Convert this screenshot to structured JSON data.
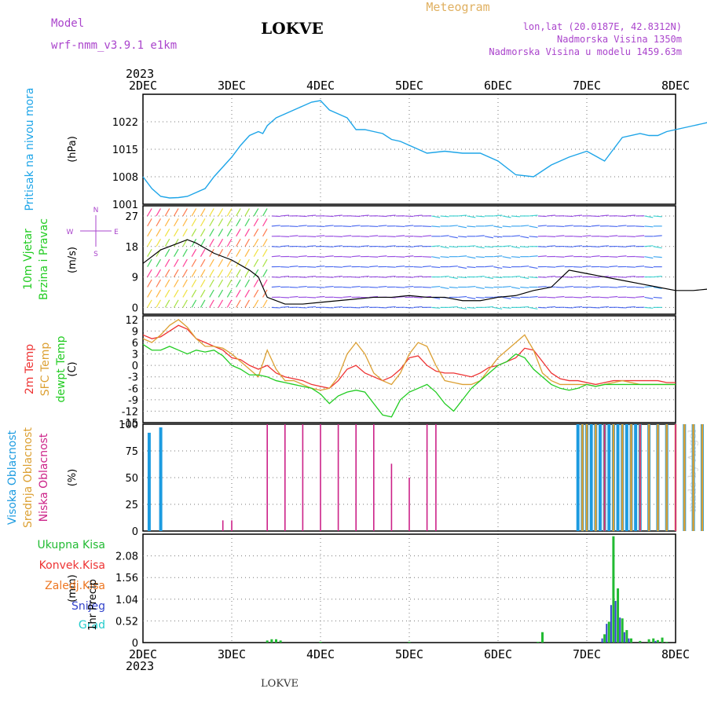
{
  "header": {
    "model_label": "Model",
    "model_name": "wrf-nmm_v3.9.1 e1km",
    "station": "LOKVE",
    "product": "Meteogram",
    "lonlat": "lon,lat (20.0187E, 42.8312N)",
    "altitude": "Nadmorska Visina 1350m",
    "model_altitude": "Nadmorska Visina u modelu 1459.63m",
    "credit": "made by Angel",
    "footer_station": "LOKVE"
  },
  "colors": {
    "pressure": "#1ea5e8",
    "wind_label": "#22cc22",
    "cloud_high": "#1c9be0",
    "cloud_mid": "#dca033",
    "cloud_low": "#cc2288",
    "precip_total": "#22bb33",
    "precip_conv": "#ee3333",
    "precip_frz": "#ee7722",
    "precip_snow": "#3344cc",
    "precip_hail": "#22cccc",
    "temp2m": "#ee3333",
    "tsfc": "#dca033",
    "dewpt": "#22cc22",
    "header_purple": "#aa44cc",
    "header_gold": "#e0b060"
  },
  "time_axis": {
    "year": "2023",
    "ticks": [
      "2DEC",
      "3DEC",
      "4DEC",
      "5DEC",
      "6DEC",
      "7DEC",
      "8DEC"
    ]
  },
  "chart_data": [
    {
      "type": "line",
      "ylabel": "Pritisak na nivou mora",
      "unit": "(hPa)",
      "ylim": [
        1001,
        1029
      ],
      "yticks": [
        "1001",
        "1008",
        "1015",
        "1022"
      ],
      "x": [
        0,
        0.1,
        0.2,
        0.3,
        0.4,
        0.5,
        0.6,
        0.7,
        0.8,
        0.9,
        1.0,
        1.1,
        1.2,
        1.3,
        1.35,
        1.4,
        1.5,
        1.6,
        1.7,
        1.8,
        1.9,
        2.0,
        2.1,
        2.2,
        2.25,
        2.3,
        2.4,
        2.5,
        2.6,
        2.7,
        2.8,
        2.9,
        3.0,
        3.2,
        3.4,
        3.6,
        3.8,
        4.0,
        4.2,
        4.4,
        4.6,
        4.8,
        5.0,
        5.2,
        5.4,
        5.6,
        5.7,
        5.8,
        5.9,
        6.0,
        6.1,
        6.2,
        6.3,
        6.4,
        6.6,
        6.8,
        7.0
      ],
      "series": [
        {
          "values": [
            1008,
            1005,
            1003,
            1002.6,
            1002.7,
            1003,
            1004,
            1005,
            1008,
            1010.5,
            1013,
            1016,
            1018.5,
            1019.5,
            1019,
            1021,
            1023,
            1024,
            1025,
            1026,
            1027,
            1027.4,
            1025,
            1024,
            1023.5,
            1023,
            1020,
            1020,
            1019.5,
            1019,
            1017.5,
            1017,
            1016,
            1014,
            1014.5,
            1014,
            1014,
            1012,
            1008.5,
            1008,
            1011,
            1013,
            1014.5,
            1012,
            1018,
            1019,
            1018.5,
            1018.5,
            1019.5,
            1020,
            1020.5,
            1021,
            1021.5,
            1022,
            1021.5,
            1022,
            1022
          ]
        }
      ]
    },
    {
      "type": "line",
      "ylabel": "10m Vjetar Brzina i Pravac",
      "unit": "(m/s)",
      "ylim": [
        -2,
        30
      ],
      "yticks": [
        "0",
        "9",
        "18",
        "27"
      ],
      "compass": {
        "north": "N",
        "south": "S",
        "east": "E",
        "west": "W"
      },
      "x": [
        0,
        0.2,
        0.4,
        0.5,
        0.6,
        0.8,
        1.0,
        1.2,
        1.3,
        1.4,
        1.6,
        1.8,
        2.0,
        2.2,
        2.4,
        2.6,
        2.8,
        3.0,
        3.2,
        3.4,
        3.6,
        3.8,
        4.0,
        4.2,
        4.4,
        4.5,
        4.6,
        4.8,
        5.0,
        5.2,
        5.4,
        5.6,
        5.8,
        6.0,
        6.2,
        6.4,
        6.6,
        6.8,
        7.0
      ],
      "series": [
        {
          "values": [
            13,
            17,
            19,
            20,
            19,
            16,
            14,
            11,
            9,
            3,
            1,
            1,
            1.5,
            2,
            2.5,
            3,
            3,
            3.5,
            3,
            3,
            2,
            2,
            3,
            3.5,
            5,
            5.5,
            6,
            11,
            10,
            9,
            8,
            7,
            6,
            5,
            5,
            5.5,
            5,
            4.5,
            4
          ]
        }
      ],
      "shaded_columns": [
        {
          "from": 2.65,
          "to": 3.5
        },
        {
          "from": 4.5,
          "to": 5.3
        }
      ]
    },
    {
      "type": "line",
      "ylabel": "2m Temp / SFC Temp / dewpt Temp",
      "unit": "(C)",
      "ylim": [
        -15,
        13
      ],
      "yticks": [
        "12",
        "9",
        "6",
        "3",
        "0",
        "-3",
        "-6",
        "-9",
        "-12",
        "-15"
      ],
      "x": [
        0,
        0.1,
        0.2,
        0.3,
        0.4,
        0.5,
        0.6,
        0.7,
        0.8,
        0.9,
        1.0,
        1.1,
        1.2,
        1.3,
        1.4,
        1.5,
        1.6,
        1.7,
        1.8,
        1.9,
        2.0,
        2.1,
        2.2,
        2.3,
        2.4,
        2.5,
        2.6,
        2.7,
        2.8,
        2.9,
        3.0,
        3.1,
        3.2,
        3.3,
        3.4,
        3.5,
        3.6,
        3.7,
        3.8,
        3.9,
        4.0,
        4.1,
        4.2,
        4.3,
        4.4,
        4.5,
        4.6,
        4.7,
        4.8,
        4.9,
        5.0,
        5.1,
        5.2,
        5.3,
        5.4,
        5.5,
        5.6,
        5.7,
        5.8,
        5.9,
        6.0
      ],
      "series": [
        {
          "name": "2m Temp",
          "values": [
            8,
            7,
            7.5,
            9,
            10.5,
            9.5,
            7,
            6,
            5,
            4,
            2,
            1.5,
            0,
            -1,
            0,
            -2,
            -3,
            -3.5,
            -4,
            -5,
            -5.5,
            -6,
            -4,
            -1,
            0,
            -2,
            -3,
            -4,
            -3,
            -1,
            2,
            2.5,
            0,
            -1.5,
            -2,
            -2,
            -2.5,
            -3,
            -2,
            -0.5,
            0,
            1,
            2,
            4.5,
            4,
            1,
            -2,
            -3.5,
            -4,
            -4,
            -4.5,
            -5,
            -4.5,
            -4,
            -4,
            -4,
            -4,
            -4,
            -4,
            -4.5,
            -4.5
          ]
        },
        {
          "name": "SFC Temp",
          "values": [
            7,
            6,
            8,
            10.5,
            12,
            10,
            7,
            5,
            5,
            4.5,
            3,
            1,
            -1,
            -3,
            4,
            -1,
            -4,
            -4,
            -5,
            -6,
            -6.5,
            -6,
            -3,
            3,
            6,
            3,
            -2,
            -4,
            -5,
            -2,
            3,
            6,
            5,
            0,
            -4,
            -4.5,
            -5,
            -5,
            -4,
            -1,
            2,
            4,
            6,
            8,
            4,
            -2,
            -4,
            -5,
            -5,
            -5,
            -5,
            -5.5,
            -5,
            -4.5,
            -4,
            -4.5,
            -5,
            -5,
            -5,
            -5,
            -5
          ]
        },
        {
          "name": "dewpt Temp",
          "values": [
            5.5,
            4,
            4,
            5,
            4,
            3,
            4,
            3.5,
            4,
            2.5,
            0,
            -1,
            -2.5,
            -2.5,
            -3,
            -4,
            -4.5,
            -5,
            -5.5,
            -6,
            -7.5,
            -10,
            -8,
            -7,
            -6.5,
            -7,
            -10,
            -13,
            -13.5,
            -9,
            -7,
            -6,
            -5,
            -7,
            -10,
            -12,
            -9,
            -6,
            -4,
            -2,
            0,
            1,
            3,
            2,
            -1,
            -3,
            -5,
            -6,
            -6.5,
            -6,
            -5,
            -5.5,
            -5,
            -5,
            -5,
            -5,
            -5,
            -5,
            -5,
            -5,
            -5
          ]
        }
      ]
    },
    {
      "type": "bar",
      "ylabel": "Visoka Oblacnost / Srednja Oblacnost / Niska Oblacnost",
      "unit": "(%)",
      "ylim": [
        0,
        100
      ],
      "yticks": [
        "0",
        "25",
        "50",
        "75",
        "100"
      ],
      "series": [
        {
          "name": "Visoka Oblacnost",
          "x": [
            0.07,
            0.2,
            4.9,
            4.95,
            5.0,
            5.05,
            5.1,
            5.15,
            5.2,
            5.25,
            5.3,
            5.35,
            5.4,
            5.45,
            5.5,
            5.55,
            5.6,
            5.7,
            5.8,
            5.9,
            6.1,
            6.2,
            6.3,
            6.5,
            6.6,
            6.7
          ],
          "values": [
            92,
            97,
            100,
            100,
            100,
            100,
            100,
            100,
            100,
            100,
            100,
            100,
            100,
            100,
            100,
            100,
            100,
            100,
            100,
            100,
            100,
            100,
            100,
            100,
            100,
            100
          ]
        },
        {
          "name": "Srednja Oblacnost",
          "x": [
            4.95,
            5.0,
            5.1,
            5.2,
            5.3,
            5.4,
            5.5,
            5.6,
            5.7,
            5.8,
            5.9,
            6.0,
            6.1,
            6.2,
            6.3,
            6.4,
            6.5,
            6.6,
            6.7,
            6.8,
            6.9,
            7.0
          ],
          "values": [
            100,
            100,
            100,
            100,
            100,
            100,
            100,
            100,
            100,
            100,
            100,
            100,
            100,
            100,
            100,
            100,
            100,
            50,
            100,
            30,
            35,
            15
          ]
        },
        {
          "name": "Niska Oblacnost",
          "x": [
            0.9,
            1.0,
            1.4,
            1.6,
            1.8,
            2.0,
            2.2,
            2.4,
            2.6,
            2.8,
            3.0,
            3.2,
            3.3,
            5.2,
            5.6,
            6.0,
            6.5,
            6.55,
            6.6,
            6.7,
            6.8,
            6.9,
            7.0
          ],
          "values": [
            10,
            10,
            100,
            100,
            100,
            100,
            100,
            100,
            100,
            63,
            50,
            100,
            100,
            100,
            100,
            100,
            100,
            100,
            100,
            100,
            100,
            100,
            100
          ]
        }
      ]
    },
    {
      "type": "bar",
      "ylabel": "1hr Precip",
      "unit": "(mm)",
      "ylim": [
        0,
        2.6
      ],
      "yticks": [
        "0",
        "0.52",
        "1.04",
        "1.56",
        "2.08"
      ],
      "legend": [
        "Ukupna Kisa",
        "Konvek.Kisa",
        "Zaledj.Kisa",
        "Snijeg",
        "Grad"
      ],
      "series": [
        {
          "name": "Ukupna Kisa",
          "x": [
            1.4,
            1.45,
            1.5,
            1.55,
            2.0,
            3.0,
            4.45,
            4.5,
            5.2,
            5.25,
            5.3,
            5.35,
            5.4,
            5.45,
            5.5,
            5.6,
            5.7,
            5.75,
            5.8,
            5.85,
            5.9
          ],
          "values": [
            0.05,
            0.08,
            0.08,
            0.05,
            0.02,
            0.02,
            0.02,
            0.25,
            0.2,
            0.5,
            2.55,
            1.3,
            0.58,
            0.3,
            0.1,
            0.04,
            0.08,
            0.1,
            0.06,
            0.12,
            0.02
          ]
        },
        {
          "name": "Snijeg",
          "x": [
            5.2,
            5.25,
            5.3,
            5.35,
            5.4,
            5.45,
            5.5,
            5.8
          ],
          "values": [
            0.1,
            0.45,
            0.9,
            1.0,
            0.6,
            0.25,
            0.1,
            0.04
          ]
        }
      ]
    }
  ]
}
